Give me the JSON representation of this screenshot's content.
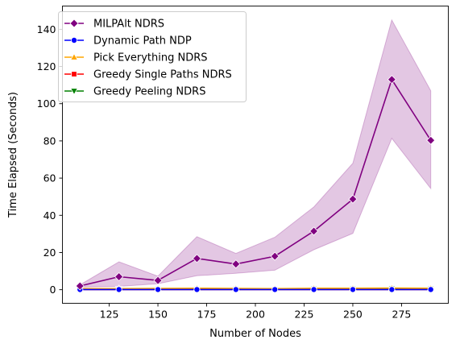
{
  "chart_data": {
    "type": "line",
    "title": "",
    "xlabel": "Number of Nodes",
    "ylabel": "Time Elapsed (Seconds)",
    "xlim": [
      101,
      299
    ],
    "ylim": [
      -7.3,
      152.5
    ],
    "xticks": [
      125,
      150,
      175,
      200,
      225,
      250,
      275
    ],
    "yticks": [
      0,
      20,
      40,
      60,
      80,
      100,
      120,
      140
    ],
    "grid": false,
    "legend_position": "top-left",
    "x": [
      110,
      130,
      150,
      170,
      190,
      210,
      230,
      250,
      270,
      290
    ],
    "series": [
      {
        "name": "MILPAlt NDRS",
        "color": "#800080",
        "marker": "diamond",
        "values": [
          2.0,
          7.0,
          5.0,
          16.8,
          13.8,
          18.0,
          31.5,
          48.7,
          113.0,
          80.3
        ],
        "ci_low": [
          1.4,
          1.8,
          3.2,
          7.5,
          8.8,
          10.5,
          21.5,
          30.3,
          81.4,
          54.4
        ],
        "ci_high": [
          2.6,
          15.0,
          7.3,
          28.5,
          19.5,
          28.2,
          44.5,
          68.0,
          145.0,
          107.0
        ]
      },
      {
        "name": "Dynamic Path NDP",
        "color": "#0000ff",
        "marker": "circle",
        "values": [
          0.1,
          0.1,
          0.1,
          0.1,
          0.1,
          0.1,
          0.1,
          0.1,
          0.1,
          0.1
        ]
      },
      {
        "name": "Pick Everything NDRS",
        "color": "#ffa500",
        "marker": "triangle-up",
        "values": [
          0.6,
          0.6,
          0.7,
          0.8,
          0.7,
          0.6,
          0.8,
          0.8,
          0.9,
          0.8
        ]
      },
      {
        "name": "Greedy Single Paths NDRS",
        "color": "#ff0000",
        "marker": "square",
        "values": [
          0.1,
          0.1,
          0.1,
          0.1,
          0.1,
          0.1,
          0.1,
          0.1,
          0.1,
          0.1
        ]
      },
      {
        "name": "Greedy Peeling NDRS",
        "color": "#008000",
        "marker": "triangle-down",
        "values": [
          0.3,
          0.3,
          0.4,
          0.4,
          0.4,
          0.3,
          0.5,
          0.5,
          0.6,
          0.5
        ]
      }
    ]
  }
}
